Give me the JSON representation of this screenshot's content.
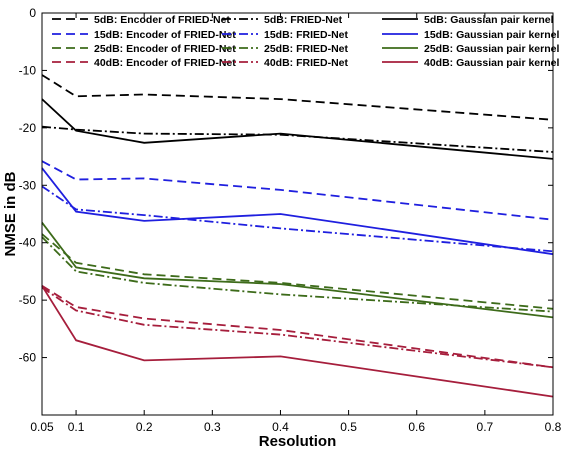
{
  "chart_data": {
    "type": "line",
    "xlabel": "Resolution",
    "ylabel": "NMSE in dB",
    "xlim": [
      0.05,
      0.8
    ],
    "ylim": [
      -70,
      0
    ],
    "xticks": [
      0.05,
      0.1,
      0.2,
      0.3,
      0.4,
      0.5,
      0.6,
      0.7,
      0.8
    ],
    "xtick_labels": [
      "0.05",
      "0.1",
      "0.2",
      "0.3",
      "0.4",
      "0.5",
      "0.6",
      "0.7",
      "0.8"
    ],
    "yticks": [
      0,
      -10,
      -20,
      -30,
      -40,
      -50,
      -60
    ],
    "ytick_labels": [
      "0",
      "-10",
      "-20",
      "-30",
      "-40",
      "-50",
      "-60"
    ],
    "grid": false,
    "legend_position": "top",
    "x": [
      0.05,
      0.1,
      0.2,
      0.4,
      0.8
    ],
    "series": [
      {
        "name": "5dB: Encoder of FRIED-Net",
        "color": "#000000",
        "style": "dashed",
        "values": [
          -10.8,
          -14.5,
          -14.2,
          -15.0,
          -18.6
        ]
      },
      {
        "name": "15dB: Encoder of FRIED-Net",
        "color": "#1f1fdf",
        "style": "dashed",
        "values": [
          -25.8,
          -29.0,
          -28.8,
          -30.8,
          -36.0
        ]
      },
      {
        "name": "25dB: Encoder of FRIED-Net",
        "color": "#3d6b1a",
        "style": "dashed",
        "values": [
          -38.5,
          -43.5,
          -45.5,
          -47.0,
          -51.5
        ]
      },
      {
        "name": "40dB: Encoder of FRIED-Net",
        "color": "#a61e3c",
        "style": "dashed",
        "values": [
          -47.5,
          -51.2,
          -53.2,
          -55.2,
          -61.7
        ]
      },
      {
        "name": "5dB: FRIED-Net",
        "color": "#000000",
        "style": "dashdot",
        "values": [
          -19.8,
          -20.3,
          -21.0,
          -21.2,
          -24.2
        ]
      },
      {
        "name": "15dB: FRIED-Net",
        "color": "#1f1fdf",
        "style": "dashdot",
        "values": [
          -30.2,
          -34.2,
          -35.2,
          -37.5,
          -41.5
        ]
      },
      {
        "name": "25dB: FRIED-Net",
        "color": "#3d6b1a",
        "style": "dashdot",
        "values": [
          -39.0,
          -45.0,
          -47.0,
          -49.0,
          -52.0
        ]
      },
      {
        "name": "40dB: FRIED-Net",
        "color": "#a61e3c",
        "style": "dashdot",
        "values": [
          -47.8,
          -51.8,
          -54.3,
          -56.0,
          -61.7
        ]
      },
      {
        "name": "5dB: Gaussian pair kernel",
        "color": "#000000",
        "style": "solid",
        "values": [
          -15.0,
          -20.5,
          -22.6,
          -21.0,
          -25.4
        ]
      },
      {
        "name": "15dB: Gaussian pair kernel",
        "color": "#1f1fdf",
        "style": "solid",
        "values": [
          -27.0,
          -34.6,
          -36.2,
          -35.0,
          -42.0
        ]
      },
      {
        "name": "25dB: Gaussian pair kernel",
        "color": "#3d6b1a",
        "style": "solid",
        "values": [
          -36.5,
          -44.3,
          -46.2,
          -47.2,
          -53.0
        ]
      },
      {
        "name": "40dB: Gaussian pair kernel",
        "color": "#a61e3c",
        "style": "solid",
        "values": [
          -47.5,
          -57.0,
          -60.5,
          -59.8,
          -66.8
        ]
      }
    ]
  }
}
